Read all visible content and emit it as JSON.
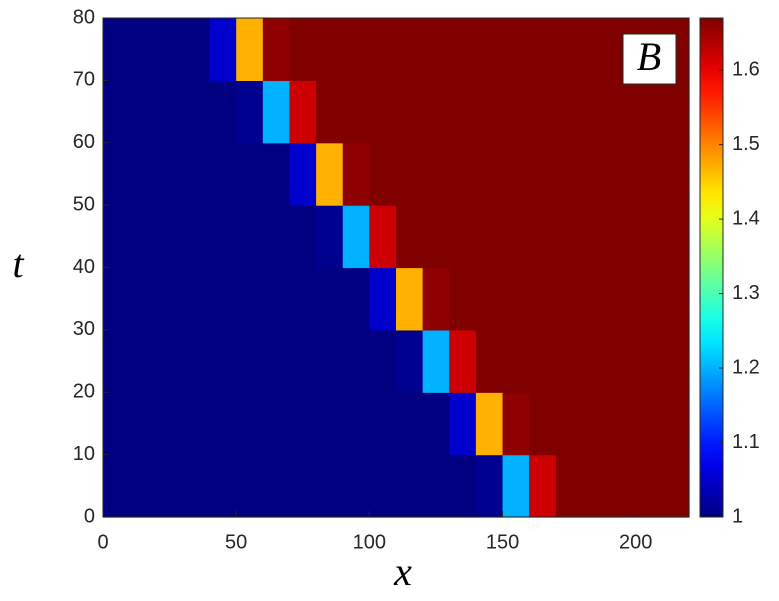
{
  "chart_data": {
    "type": "heatmap",
    "xlabel": "x",
    "ylabel": "t",
    "annotation": "B",
    "colormap": "jet",
    "x": [
      5,
      15,
      25,
      35,
      45,
      55,
      65,
      75,
      85,
      95,
      105,
      115,
      125,
      135,
      145,
      155,
      165,
      175,
      185,
      195,
      205,
      215
    ],
    "y": [
      5,
      15,
      25,
      35,
      45,
      55,
      65,
      75
    ],
    "values": [
      [
        1,
        1,
        1,
        1,
        1,
        1,
        1,
        1,
        1,
        1,
        1,
        1,
        1,
        1,
        1.01,
        1.2,
        1.62,
        1.67,
        1.67,
        1.67,
        1.67,
        1.67
      ],
      [
        1,
        1,
        1,
        1,
        1,
        1,
        1,
        1,
        1,
        1,
        1,
        1,
        1,
        1.05,
        1.47,
        1.66,
        1.67,
        1.67,
        1.67,
        1.67,
        1.67,
        1.67
      ],
      [
        1,
        1,
        1,
        1,
        1,
        1,
        1,
        1,
        1,
        1,
        1,
        1.01,
        1.2,
        1.62,
        1.67,
        1.67,
        1.67,
        1.67,
        1.67,
        1.67,
        1.67,
        1.67
      ],
      [
        1,
        1,
        1,
        1,
        1,
        1,
        1,
        1,
        1,
        1,
        1.05,
        1.47,
        1.66,
        1.67,
        1.67,
        1.67,
        1.67,
        1.67,
        1.67,
        1.67,
        1.67,
        1.67
      ],
      [
        1,
        1,
        1,
        1,
        1,
        1,
        1,
        1,
        1.01,
        1.2,
        1.62,
        1.67,
        1.67,
        1.67,
        1.67,
        1.67,
        1.67,
        1.67,
        1.67,
        1.67,
        1.67,
        1.67
      ],
      [
        1,
        1,
        1,
        1,
        1,
        1,
        1,
        1.05,
        1.47,
        1.66,
        1.67,
        1.67,
        1.67,
        1.67,
        1.67,
        1.67,
        1.67,
        1.67,
        1.67,
        1.67,
        1.67,
        1.67
      ],
      [
        1,
        1,
        1,
        1,
        1,
        1.01,
        1.2,
        1.62,
        1.67,
        1.67,
        1.67,
        1.67,
        1.67,
        1.67,
        1.67,
        1.67,
        1.67,
        1.67,
        1.67,
        1.67,
        1.67,
        1.67
      ],
      [
        1,
        1,
        1,
        1,
        1.05,
        1.47,
        1.66,
        1.67,
        1.67,
        1.67,
        1.67,
        1.67,
        1.67,
        1.67,
        1.67,
        1.67,
        1.67,
        1.67,
        1.67,
        1.67,
        1.67,
        1.67
      ]
    ],
    "xlim": [
      0,
      220
    ],
    "xticks": [
      0,
      50,
      100,
      150,
      200
    ],
    "ylim": [
      0,
      80
    ],
    "yticks": [
      0,
      10,
      20,
      30,
      40,
      50,
      60,
      70,
      80
    ],
    "clim": [
      1,
      1.67
    ],
    "cticks": [
      1,
      1.1,
      1.2,
      1.3,
      1.4,
      1.5,
      1.6
    ]
  }
}
